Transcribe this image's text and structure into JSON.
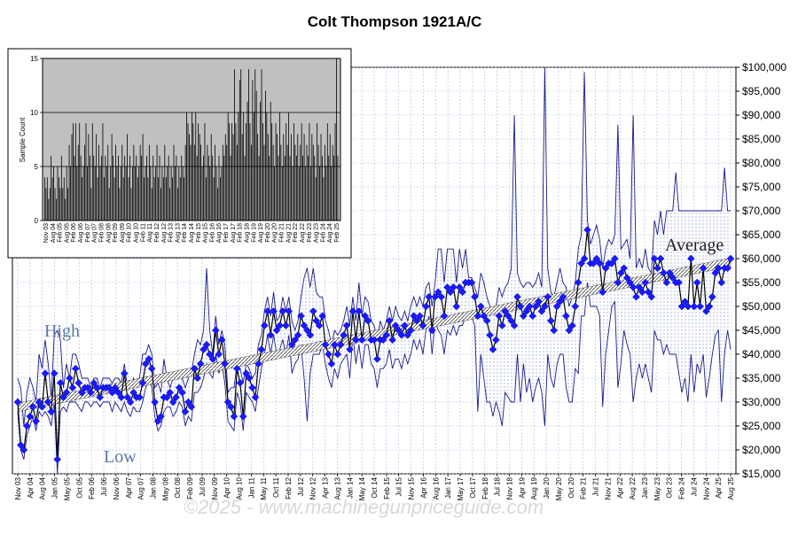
{
  "chart_data": [
    {
      "type": "line",
      "title": "Colt Thompson 1921A/C",
      "ylim": [
        15000,
        100000
      ],
      "yticks": [
        "$15,000",
        "$20,000",
        "$25,000",
        "$30,000",
        "$35,000",
        "$40,000",
        "$45,000",
        "$50,000",
        "$55,000",
        "$60,000",
        "$65,000",
        "$70,000",
        "$75,000",
        "$80,000",
        "$85,000",
        "$90,000",
        "$95,000",
        "$100,000"
      ],
      "x_tick_labels": [
        "Nov 03",
        "Apr 04",
        "Aug 04",
        "Jan 05",
        "May 05",
        "Oct 05",
        "Feb 06",
        "Jul 06",
        "Nov 06",
        "Apr 07",
        "Aug 07",
        "Jan 08",
        "May 08",
        "Oct 08",
        "Feb 09",
        "Jul 09",
        "Nov 09",
        "Apr 10",
        "Aug 10",
        "Jan 11",
        "May 11",
        "Oct 11",
        "Feb 12",
        "Jul 12",
        "Nov 12",
        "Apr 13",
        "Aug 13",
        "Jan 14",
        "May 14",
        "Oct 14",
        "Feb 15",
        "Jul 15",
        "Nov 15",
        "Apr 16",
        "Aug 16",
        "Jan 17",
        "May 17",
        "Oct 17",
        "Feb 18",
        "Jul 18",
        "Nov 18",
        "Apr 19",
        "Aug 19",
        "Jan 20",
        "May 20",
        "Oct 20",
        "Feb 21",
        "Jul 21",
        "Nov 21",
        "Apr 22",
        "Aug 22",
        "Jan 23",
        "May 23",
        "Oct 23",
        "Feb 24",
        "Jul 24",
        "Nov 24",
        "Apr 25",
        "Aug 25"
      ],
      "series_labels": {
        "high": "High",
        "low": "Low",
        "average": "Average"
      },
      "series": [
        {
          "name": "Average",
          "values": [
            30000,
            21000,
            20000,
            25000,
            27000,
            29000,
            26000,
            30000,
            29000,
            36000,
            30000,
            28000,
            36000,
            18000,
            34000,
            31000,
            32000,
            35000,
            33000,
            37000,
            34000,
            32000,
            33000,
            33000,
            32000,
            34000,
            33000,
            31000,
            33000,
            33000,
            33000,
            32000,
            33000,
            32000,
            31000,
            36000,
            31000,
            30000,
            32000,
            31000,
            31000,
            34000,
            38000,
            39000,
            37000,
            30000,
            26000,
            27000,
            31000,
            31000,
            32000,
            30000,
            31000,
            33000,
            32000,
            28000,
            30000,
            29000,
            37000,
            35000,
            38000,
            41000,
            42000,
            40000,
            39000,
            45000,
            40000,
            43000,
            38000,
            30000,
            29000,
            27000,
            37000,
            34000,
            27000,
            36000,
            35000,
            33000,
            31000,
            38000,
            41000,
            46000,
            49000,
            44000,
            49000,
            45000,
            46000,
            49000,
            46000,
            49000,
            42000,
            43000,
            44000,
            48000,
            46000,
            45000,
            44000,
            49000,
            47000,
            46000,
            48000,
            42000,
            40000,
            38000,
            42000,
            40000,
            42000,
            44000,
            46000,
            41000,
            49000,
            43000,
            49000,
            43000,
            48000,
            47000,
            43000,
            43000,
            39000,
            43000,
            43000,
            44000,
            47000,
            43000,
            46000,
            45000,
            44000,
            46000,
            44000,
            45000,
            48000,
            47000,
            48000,
            46000,
            50000,
            52000,
            45000,
            52000,
            53000,
            52000,
            48000,
            54000,
            53000,
            54000,
            50000,
            54000,
            53000,
            55000,
            55000,
            55000,
            52000,
            48000,
            50000,
            48000,
            47000,
            44000,
            41000,
            43000,
            48000,
            46000,
            49000,
            48000,
            47000,
            46000,
            52000,
            50000,
            48000,
            49000,
            50000,
            48000,
            50000,
            51000,
            49000,
            50000,
            52000,
            47000,
            45000,
            50000,
            51000,
            52000,
            48000,
            45000,
            46000,
            50000,
            55000,
            59000,
            60000,
            66000,
            59000,
            59000,
            60000,
            59000,
            53000,
            58000,
            59000,
            59000,
            60000,
            55000,
            57000,
            58000,
            56000,
            55000,
            54000,
            52000,
            54000,
            53000,
            55000,
            53000,
            52000,
            60000,
            58000,
            60000,
            57000,
            55000,
            57000,
            56000,
            55000,
            55000,
            50000,
            51000,
            50000,
            60000,
            50000,
            55000,
            50000,
            58000,
            49000,
            50000,
            52000,
            57000,
            58000,
            55000,
            58000,
            58000,
            60000
          ],
          "sample_count": [
            4,
            3,
            4,
            2,
            3,
            6,
            4,
            5,
            3,
            2,
            5,
            4,
            3,
            6,
            3,
            4,
            2,
            5,
            3,
            7,
            5,
            8,
            9,
            6,
            9,
            5,
            7,
            9,
            6,
            4,
            5,
            7,
            9,
            5,
            8,
            6,
            3,
            9,
            6,
            5,
            8,
            4,
            7,
            5,
            6,
            9,
            4,
            6,
            5,
            7,
            3,
            5,
            8,
            6,
            4,
            7,
            5,
            6,
            3,
            5,
            7,
            4,
            6,
            5,
            8,
            4,
            6,
            3,
            5,
            7,
            5,
            6,
            4,
            5,
            7,
            6,
            8,
            4,
            5,
            6,
            4,
            7,
            5,
            3,
            6,
            4,
            5,
            7,
            4,
            6,
            3,
            5,
            4,
            7,
            4,
            5,
            6,
            3,
            5,
            4,
            7,
            5,
            6,
            3,
            5,
            4,
            6,
            5,
            4,
            7,
            10,
            9,
            8,
            7,
            10,
            9,
            7,
            10,
            6,
            9,
            8,
            7,
            5,
            6,
            9,
            4,
            7,
            6,
            5,
            8,
            6,
            4,
            7,
            5,
            3,
            6,
            4,
            5,
            7,
            6,
            8,
            7,
            10,
            9,
            6,
            9,
            8,
            14,
            9,
            7,
            10,
            13,
            14,
            8,
            10,
            6,
            9,
            11,
            14,
            9,
            7,
            13,
            10,
            14,
            12,
            8,
            6,
            11,
            14,
            9,
            7,
            12,
            10,
            8,
            6,
            11,
            9,
            7,
            5,
            9,
            8,
            6,
            10,
            7,
            5,
            8,
            6,
            9,
            7,
            10,
            6,
            8,
            5,
            9,
            7,
            6,
            8,
            5,
            7,
            9,
            6,
            8,
            5,
            7,
            6,
            9,
            5,
            8,
            7,
            6,
            4,
            9,
            7,
            5,
            8,
            6,
            4,
            7,
            5,
            9,
            6,
            8,
            5,
            7,
            6,
            9,
            15,
            6
          ]
        },
        {
          "name": "High",
          "values": [
            35000,
            33000,
            25000,
            32000,
            35000,
            33000,
            30000,
            40000,
            37000,
            43000,
            38000,
            31000,
            44000,
            45000,
            43000,
            33000,
            38000,
            35000,
            40000,
            40000,
            38000,
            35000,
            35000,
            35000,
            33000,
            35000,
            35000,
            33000,
            35000,
            35000,
            35000,
            34000,
            35000,
            35000,
            34000,
            38000,
            33000,
            33000,
            35000,
            33000,
            35000,
            40000,
            40000,
            42000,
            40000,
            33000,
            34000,
            32000,
            39000,
            35000,
            33000,
            35000,
            35000,
            35000,
            35000,
            33000,
            35000,
            36000,
            40000,
            43000,
            42000,
            45000,
            58000,
            45000,
            40000,
            48000,
            42000,
            45000,
            42000,
            32000,
            33000,
            33000,
            38000,
            37000,
            34000,
            38000,
            37000,
            35000,
            36000,
            42000,
            44000,
            49000,
            52000,
            48000,
            53000,
            47000,
            48000,
            52000,
            49000,
            52000,
            47000,
            45000,
            47000,
            52000,
            56000,
            58000,
            54000,
            58000,
            53000,
            52000,
            52000,
            47000,
            45000,
            42000,
            45000,
            44000,
            45000,
            47000,
            50000,
            46000,
            52000,
            47000,
            55000,
            48000,
            52000,
            51000,
            47000,
            46000,
            43000,
            47000,
            45000,
            47000,
            50000,
            47000,
            50000,
            48000,
            47000,
            49000,
            47000,
            50000,
            52000,
            50000,
            52000,
            50000,
            54000,
            55000,
            50000,
            55000,
            62000,
            62000,
            55000,
            62000,
            62000,
            62000,
            55000,
            62000,
            58000,
            62000,
            56000,
            56000,
            54000,
            52000,
            57000,
            55000,
            52000,
            50000,
            49000,
            50000,
            54000,
            52000,
            54000,
            55000,
            58000,
            90000,
            57000,
            55000,
            54000,
            55000,
            55000,
            54000,
            55000,
            57000,
            54000,
            100000,
            58000,
            53000,
            52000,
            55000,
            58000,
            55000,
            54000,
            50000,
            52000,
            55000,
            62000,
            65000,
            99000,
            68000,
            63000,
            65000,
            67000,
            64000,
            58000,
            62000,
            64000,
            63000,
            65000,
            88000,
            62000,
            63000,
            64000,
            60000,
            90000,
            58000,
            60000,
            58000,
            62000,
            58000,
            57000,
            68000,
            65000,
            70000,
            65000,
            70000,
            70000,
            70000,
            78000,
            70000,
            70000,
            70000,
            70000,
            70000,
            70000,
            70000,
            70000,
            70000,
            70000,
            70000,
            70000,
            70000,
            70000,
            70000,
            79000,
            70000,
            70000
          ]
        },
        {
          "name": "Low",
          "values": [
            28000,
            20000,
            18000,
            23000,
            25000,
            27000,
            24000,
            28000,
            27000,
            28000,
            27000,
            25000,
            30000,
            15000,
            28000,
            29000,
            28000,
            30000,
            30000,
            30000,
            29000,
            28000,
            30000,
            30000,
            29000,
            30000,
            30000,
            29000,
            30000,
            30000,
            30000,
            28000,
            30000,
            29000,
            28000,
            30000,
            28000,
            27000,
            29000,
            28000,
            28000,
            30000,
            33000,
            35000,
            33000,
            27000,
            24000,
            25000,
            28000,
            29000,
            29000,
            27000,
            28000,
            30000,
            29000,
            25000,
            27000,
            26000,
            32000,
            32000,
            33000,
            35000,
            38000,
            36000,
            35000,
            40000,
            36000,
            38000,
            34000,
            26000,
            25000,
            24000,
            32000,
            30000,
            24000,
            32000,
            31000,
            30000,
            28000,
            33000,
            37000,
            40000,
            44000,
            40000,
            44000,
            40000,
            41000,
            43000,
            40000,
            44000,
            36000,
            38000,
            39000,
            42000,
            35000,
            26000,
            36000,
            40000,
            40000,
            40000,
            42000,
            38000,
            35000,
            33000,
            37000,
            35000,
            38000,
            39000,
            40000,
            35000,
            44000,
            38000,
            42000,
            37000,
            42000,
            42000,
            38000,
            37000,
            33000,
            37000,
            37000,
            38000,
            41000,
            37000,
            39000,
            39000,
            37000,
            40000,
            38000,
            40000,
            43000,
            41000,
            43000,
            40000,
            45000,
            48000,
            40000,
            47000,
            45000,
            44000,
            40000,
            45000,
            44000,
            46000,
            44000,
            46000,
            46000,
            48000,
            48000,
            48000,
            46000,
            28000,
            40000,
            35000,
            30000,
            30000,
            27000,
            30000,
            28000,
            25000,
            32000,
            31000,
            30000,
            30000,
            40000,
            30000,
            38000,
            32000,
            35000,
            30000,
            33000,
            35000,
            32000,
            25000,
            40000,
            35000,
            33000,
            38000,
            40000,
            40000,
            33000,
            30000,
            30000,
            37000,
            36000,
            48000,
            48000,
            55000,
            50000,
            50000,
            50000,
            48000,
            29000,
            40000,
            45000,
            50000,
            51000,
            33000,
            38000,
            45000,
            42000,
            40000,
            30000,
            35000,
            38000,
            35000,
            38000,
            35000,
            32000,
            45000,
            43000,
            43000,
            40000,
            42000,
            40000,
            40000,
            40000,
            36000,
            32000,
            35000,
            30000,
            40000,
            32000,
            38000,
            36000,
            40000,
            31000,
            35000,
            40000,
            44000,
            45000,
            30000,
            40000,
            45000,
            41000
          ]
        }
      ],
      "annotation": "©2025 - www.machinegunpriceguide.com"
    },
    {
      "type": "bar",
      "ylabel": "Sample Count",
      "ylim": [
        0,
        15
      ],
      "yticks": [
        "0",
        "5",
        "10",
        "15"
      ],
      "x_tick_labels": [
        "Nov 03",
        "Aug 04",
        "Feb 05",
        "Aug 05",
        "Feb 06",
        "Aug 06",
        "Feb 07",
        "Aug 07",
        "Feb 08",
        "Aug 08",
        "Feb 09",
        "Aug 09",
        "Feb 10",
        "Aug 10",
        "Feb 11",
        "Aug 11",
        "Feb 12",
        "Aug 12",
        "Feb 13",
        "Aug 13",
        "Feb 14",
        "Aug 14",
        "Feb 15",
        "Aug 15",
        "Feb 16",
        "Aug 16",
        "Feb 17",
        "Aug 17",
        "Feb 18",
        "Aug 18",
        "Feb 19",
        "Aug 19",
        "Feb 20",
        "Aug 20",
        "Feb 21",
        "Aug 21",
        "Feb 22",
        "Aug 22",
        "Feb 23",
        "Aug 23",
        "Feb 24",
        "Aug 24",
        "Feb 25"
      ]
    }
  ]
}
